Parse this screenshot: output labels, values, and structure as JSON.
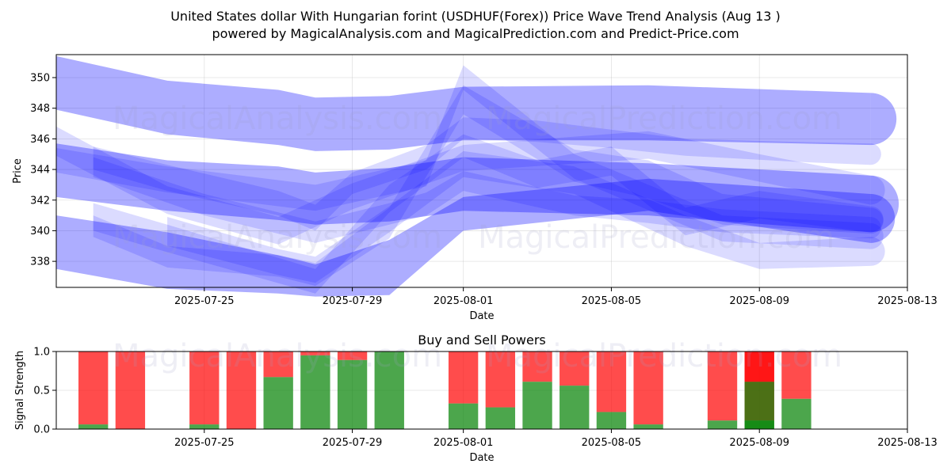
{
  "title_line1": "United States dollar With Hungarian forint (USDHUF(Forex)) Price Wave Trend Analysis (Aug 13 )",
  "title_line2": "powered by MagicalAnalysis.com and MagicalPrediction.com and Predict-Price.com",
  "watermarks": [
    "MagicalAnalysis.com",
    "MagicalPrediction.com"
  ],
  "colors": {
    "band": "#0000ff",
    "buy": "#008000",
    "sell": "#ff0000"
  },
  "chart_data": [
    {
      "type": "area",
      "title": "",
      "xlabel": "Date",
      "ylabel": "Price",
      "xlim": [
        "2025-07-21",
        "2025-08-13"
      ],
      "ylim": [
        336.3,
        351.5
      ],
      "x_ticks": [
        "2025-07-25",
        "2025-07-29",
        "2025-08-01",
        "2025-08-05",
        "2025-08-09",
        "2025-08-13"
      ],
      "y_ticks": [
        338,
        340,
        342,
        344,
        346,
        348,
        350
      ],
      "grid": true,
      "bands": [
        {
          "x": [
            "2025-07-21",
            "2025-07-24",
            "2025-07-27",
            "2025-07-28",
            "2025-07-30",
            "2025-08-01",
            "2025-08-06",
            "2025-08-12"
          ],
          "upper": [
            351.4,
            349.8,
            349.2,
            348.7,
            348.8,
            349.4,
            349.5,
            349.0
          ],
          "lower": [
            347.9,
            346.3,
            345.6,
            345.2,
            345.3,
            345.9,
            345.9,
            345.6
          ]
        },
        {
          "x": [
            "2025-07-21",
            "2025-07-24",
            "2025-07-27",
            "2025-07-28",
            "2025-07-30",
            "2025-08-01",
            "2025-08-06",
            "2025-08-12"
          ],
          "upper": [
            345.7,
            344.6,
            344.2,
            343.8,
            344.1,
            344.8,
            344.4,
            343.6
          ],
          "lower": [
            342.2,
            341.3,
            340.7,
            340.4,
            340.6,
            341.3,
            341.0,
            339.9
          ]
        },
        {
          "x": [
            "2025-07-21",
            "2025-07-24",
            "2025-07-27",
            "2025-07-28",
            "2025-07-30",
            "2025-08-01",
            "2025-08-06",
            "2025-08-12"
          ],
          "upper": [
            341.0,
            339.9,
            338.4,
            337.8,
            339.4,
            342.2,
            343.4,
            342.4
          ],
          "lower": [
            337.5,
            336.2,
            335.9,
            335.7,
            335.8,
            340.0,
            341.3,
            339.2
          ]
        },
        {
          "x": [
            "2025-07-22",
            "2025-07-24",
            "2025-07-27",
            "2025-07-28",
            "2025-07-29",
            "2025-07-31",
            "2025-08-01",
            "2025-08-03",
            "2025-08-05",
            "2025-08-07",
            "2025-08-10",
            "2025-08-12"
          ],
          "upper": [
            345.5,
            344.3,
            342.6,
            341.7,
            343.8,
            345.6,
            347.4,
            347.2,
            346.6,
            346.0,
            345.8,
            345.7
          ],
          "lower": [
            344.0,
            342.6,
            341.0,
            340.0,
            342.4,
            344.0,
            346.0,
            345.8,
            345.4,
            344.9,
            344.5,
            344.3
          ]
        },
        {
          "x": [
            "2025-07-22",
            "2025-07-24",
            "2025-07-27",
            "2025-07-28",
            "2025-07-30",
            "2025-08-01",
            "2025-08-04",
            "2025-08-06",
            "2025-08-08",
            "2025-08-12"
          ],
          "upper": [
            341.0,
            339.0,
            338.4,
            337.9,
            341.5,
            349.5,
            345.3,
            344.6,
            342.4,
            341.5
          ],
          "lower": [
            339.6,
            337.6,
            337.0,
            336.4,
            339.5,
            347.6,
            343.2,
            342.1,
            340.4,
            339.8
          ]
        },
        {
          "x": [
            "2025-07-22",
            "2025-07-25",
            "2025-07-27",
            "2025-07-28",
            "2025-07-30",
            "2025-07-31",
            "2025-08-01",
            "2025-08-04",
            "2025-08-06",
            "2025-08-08",
            "2025-08-12"
          ],
          "upper": [
            344.8,
            342.4,
            341.2,
            340.6,
            341.8,
            342.5,
            343.9,
            342.3,
            342.0,
            341.4,
            340.9
          ],
          "lower": [
            343.5,
            341.0,
            339.8,
            339.2,
            340.4,
            341.0,
            342.6,
            341.0,
            340.5,
            339.9,
            339.5
          ]
        },
        {
          "x": [
            "2025-07-22",
            "2025-07-24",
            "2025-07-28",
            "2025-07-30",
            "2025-08-01",
            "2025-08-03",
            "2025-08-05",
            "2025-08-07",
            "2025-08-09",
            "2025-08-12"
          ],
          "upper": [
            341.8,
            340.4,
            337.5,
            343.0,
            346.3,
            344.6,
            345.5,
            341.5,
            342.6,
            341.6
          ],
          "lower": [
            340.0,
            338.6,
            335.9,
            341.2,
            344.8,
            342.8,
            343.6,
            339.7,
            340.8,
            339.9
          ]
        },
        {
          "x": [
            "2025-07-21",
            "2025-07-24",
            "2025-07-27",
            "2025-07-29",
            "2025-08-01",
            "2025-08-06",
            "2025-08-09",
            "2025-08-12"
          ],
          "upper": [
            346.8,
            342.9,
            340.9,
            343.1,
            345.6,
            346.5,
            345.0,
            343.6
          ],
          "lower": [
            344.9,
            341.1,
            339.1,
            341.4,
            343.9,
            344.7,
            343.2,
            341.7
          ]
        },
        {
          "x": [
            "2025-07-24",
            "2025-07-27",
            "2025-07-28",
            "2025-07-30",
            "2025-08-01",
            "2025-08-04",
            "2025-08-07",
            "2025-08-09",
            "2025-08-12"
          ],
          "upper": [
            340.9,
            338.8,
            338.3,
            341.6,
            345.2,
            344.2,
            341.0,
            339.2,
            339.6
          ],
          "lower": [
            339.0,
            337.1,
            336.6,
            339.9,
            343.5,
            342.4,
            339.0,
            337.5,
            337.7
          ]
        },
        {
          "x": [
            "2025-07-21",
            "2025-07-24",
            "2025-07-28",
            "2025-07-31",
            "2025-08-01",
            "2025-08-04",
            "2025-08-08",
            "2025-08-12"
          ],
          "upper": [
            345.4,
            344.2,
            343.0,
            344.6,
            350.8,
            345.0,
            341.0,
            340.5
          ],
          "lower": [
            343.8,
            342.5,
            341.3,
            342.9,
            349.2,
            343.4,
            339.3,
            338.8
          ]
        }
      ]
    },
    {
      "type": "bar",
      "title": "Buy and Sell Powers",
      "xlabel": "Date",
      "ylabel": "Signal Strength",
      "xlim": [
        "2025-07-21",
        "2025-08-13"
      ],
      "ylim": [
        0,
        1
      ],
      "x_ticks": [
        "2025-07-25",
        "2025-07-29",
        "2025-08-01",
        "2025-08-05",
        "2025-08-09",
        "2025-08-13"
      ],
      "y_ticks": [
        "0.0",
        "0.5",
        "1.0"
      ],
      "grid": true,
      "series": [
        {
          "name": "Buy",
          "color": "#008000"
        },
        {
          "name": "Sell",
          "color": "#ff0000"
        }
      ],
      "bars": [
        {
          "date": "2025-07-22",
          "buy": 0.06
        },
        {
          "date": "2025-07-23",
          "buy": 0.0
        },
        {
          "date": "2025-07-25",
          "buy": 0.06
        },
        {
          "date": "2025-07-26",
          "buy": 0.0
        },
        {
          "date": "2025-07-27",
          "buy": 0.67
        },
        {
          "date": "2025-07-28",
          "buy": 0.95
        },
        {
          "date": "2025-07-29",
          "buy": 0.89
        },
        {
          "date": "2025-07-30",
          "buy": 1.0
        },
        {
          "date": "2025-08-01",
          "buy": 0.33
        },
        {
          "date": "2025-08-02",
          "buy": 0.28
        },
        {
          "date": "2025-08-03",
          "buy": 0.61
        },
        {
          "date": "2025-08-04",
          "buy": 0.56
        },
        {
          "date": "2025-08-05",
          "buy": 0.22
        },
        {
          "date": "2025-08-06",
          "buy": 0.06
        },
        {
          "date": "2025-08-08",
          "buy": 0.11
        },
        {
          "date": "2025-08-09",
          "buy": 0.11
        },
        {
          "date": "2025-08-09",
          "buy": 0.61
        },
        {
          "date": "2025-08-10",
          "buy": 0.39
        }
      ]
    }
  ]
}
